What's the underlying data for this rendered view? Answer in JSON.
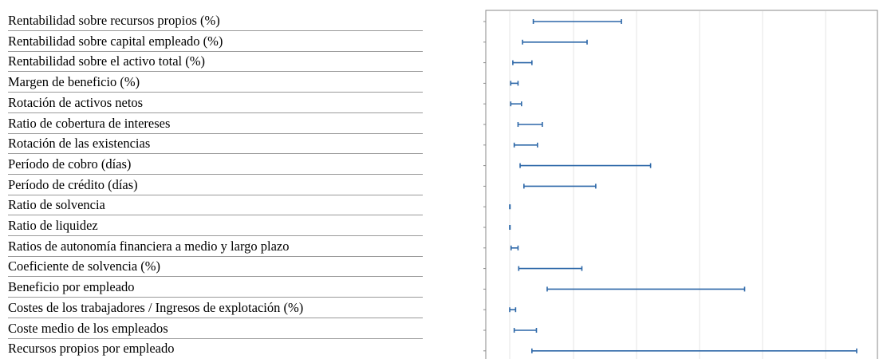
{
  "chart_data": {
    "type": "range",
    "title": "",
    "xlabel": "",
    "ylabel": "",
    "grid": true,
    "xlim": [
      0,
      100
    ],
    "ranges": [
      {
        "label": "Rentabilidad sobre recursos propios (%)",
        "low": 6.8,
        "high": 32.2
      },
      {
        "label": "Rentabilidad sobre capital empleado (%)",
        "low": 3.7,
        "high": 22.3
      },
      {
        "label": "Rentabilidad sobre el activo total (%)",
        "low": 0.9,
        "high": 6.4
      },
      {
        "label": "Margen de beneficio (%)",
        "low": 0.3,
        "high": 2.4
      },
      {
        "label": "Rotación de activos netos",
        "low": 0.3,
        "high": 3.4
      },
      {
        "label": "Ratio de cobertura de intereses",
        "low": 2.4,
        "high": 9.4
      },
      {
        "label": "Rotación de las existencias",
        "low": 1.3,
        "high": 8.0
      },
      {
        "label": "Período de cobro (días)",
        "low": 3.0,
        "high": 40.6
      },
      {
        "label": "Período de crédito (días)",
        "low": 4.1,
        "high": 24.8
      },
      {
        "label": "Ratio de solvencia",
        "low": 0.0,
        "high": 0.1
      },
      {
        "label": "Ratio de liquidez",
        "low": 0.0,
        "high": 0.1
      },
      {
        "label": "Ratios de autonomía financiera a medio y largo plazo",
        "low": 0.4,
        "high": 2.4
      },
      {
        "label": "Coeficiente de solvencia (%)",
        "low": 2.6,
        "high": 20.8
      },
      {
        "label": "Beneficio por empleado",
        "low": 10.8,
        "high": 67.7
      },
      {
        "label": "Costes de los trabajadores / Ingresos de explotación (%)",
        "low": 0.0,
        "high": 1.7
      },
      {
        "label": "Coste medio de los empleados",
        "low": 1.3,
        "high": 7.7
      },
      {
        "label": "Recursos propios por empleado",
        "low": 6.4,
        "high": 100.0
      }
    ],
    "colors": {
      "range": "#2c67a8",
      "grid": "#e4e4e4",
      "axis": "#888888"
    }
  }
}
